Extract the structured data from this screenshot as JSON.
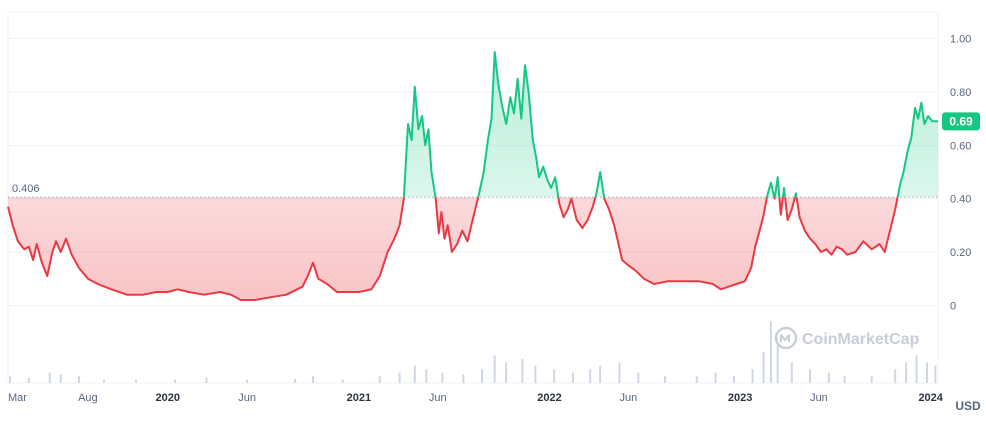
{
  "chart_data": {
    "type": "area",
    "currency_label": "USD",
    "baseline": {
      "value": 0.406,
      "label": "0.406"
    },
    "current": {
      "value": 0.69,
      "label": "0.69"
    },
    "ylim": [
      -0.22,
      1.1
    ],
    "y_ticks": [
      {
        "value": 1.0,
        "label": "1.00"
      },
      {
        "value": 0.8,
        "label": "0.80"
      },
      {
        "value": 0.6,
        "label": "0.60"
      },
      {
        "value": 0.4,
        "label": "0.40"
      },
      {
        "value": 0.2,
        "label": "0.20"
      },
      {
        "value": 0.0,
        "label": "0"
      }
    ],
    "x_ticks": [
      {
        "date": "2019-03-01",
        "label": "Mar",
        "bold": false
      },
      {
        "date": "2019-08-01",
        "label": "Aug",
        "bold": false
      },
      {
        "date": "2020-01-01",
        "label": "2020",
        "bold": true
      },
      {
        "date": "2020-06-01",
        "label": "Jun",
        "bold": false
      },
      {
        "date": "2021-01-01",
        "label": "2021",
        "bold": true
      },
      {
        "date": "2021-06-01",
        "label": "Jun",
        "bold": false
      },
      {
        "date": "2022-01-01",
        "label": "2022",
        "bold": true
      },
      {
        "date": "2022-06-01",
        "label": "Jun",
        "bold": false
      },
      {
        "date": "2023-01-01",
        "label": "2023",
        "bold": true
      },
      {
        "date": "2023-06-01",
        "label": "Jun",
        "bold": false
      },
      {
        "date": "2024-01-01",
        "label": "2024",
        "bold": true
      }
    ],
    "xlim": [
      "2019-03-01",
      "2024-01-15"
    ],
    "series": [
      {
        "points": [
          [
            "2019-03-01",
            0.37
          ],
          [
            "2019-03-10",
            0.3
          ],
          [
            "2019-03-20",
            0.24
          ],
          [
            "2019-04-01",
            0.21
          ],
          [
            "2019-04-10",
            0.22
          ],
          [
            "2019-04-18",
            0.17
          ],
          [
            "2019-04-25",
            0.23
          ],
          [
            "2019-05-05",
            0.16
          ],
          [
            "2019-05-15",
            0.11
          ],
          [
            "2019-05-25",
            0.2
          ],
          [
            "2019-06-01",
            0.24
          ],
          [
            "2019-06-10",
            0.2
          ],
          [
            "2019-06-20",
            0.25
          ],
          [
            "2019-07-01",
            0.19
          ],
          [
            "2019-07-15",
            0.14
          ],
          [
            "2019-08-01",
            0.1
          ],
          [
            "2019-08-20",
            0.08
          ],
          [
            "2019-09-15",
            0.06
          ],
          [
            "2019-10-15",
            0.04
          ],
          [
            "2019-11-15",
            0.04
          ],
          [
            "2019-12-10",
            0.05
          ],
          [
            "2020-01-01",
            0.05
          ],
          [
            "2020-01-20",
            0.06
          ],
          [
            "2020-02-10",
            0.05
          ],
          [
            "2020-03-10",
            0.04
          ],
          [
            "2020-04-10",
            0.05
          ],
          [
            "2020-05-01",
            0.04
          ],
          [
            "2020-05-20",
            0.02
          ],
          [
            "2020-06-15",
            0.02
          ],
          [
            "2020-07-15",
            0.03
          ],
          [
            "2020-08-15",
            0.04
          ],
          [
            "2020-09-15",
            0.07
          ],
          [
            "2020-09-25",
            0.11
          ],
          [
            "2020-10-05",
            0.16
          ],
          [
            "2020-10-15",
            0.1
          ],
          [
            "2020-11-01",
            0.08
          ],
          [
            "2020-11-20",
            0.05
          ],
          [
            "2020-12-10",
            0.05
          ],
          [
            "2021-01-01",
            0.05
          ],
          [
            "2021-01-25",
            0.06
          ],
          [
            "2021-02-10",
            0.11
          ],
          [
            "2021-02-25",
            0.2
          ],
          [
            "2021-03-10",
            0.25
          ],
          [
            "2021-03-20",
            0.3
          ],
          [
            "2021-03-28",
            0.4
          ],
          [
            "2021-04-05",
            0.68
          ],
          [
            "2021-04-12",
            0.62
          ],
          [
            "2021-04-18",
            0.82
          ],
          [
            "2021-04-25",
            0.66
          ],
          [
            "2021-05-02",
            0.71
          ],
          [
            "2021-05-08",
            0.6
          ],
          [
            "2021-05-14",
            0.66
          ],
          [
            "2021-05-20",
            0.5
          ],
          [
            "2021-05-28",
            0.4
          ],
          [
            "2021-06-03",
            0.27
          ],
          [
            "2021-06-08",
            0.35
          ],
          [
            "2021-06-14",
            0.25
          ],
          [
            "2021-06-20",
            0.3
          ],
          [
            "2021-06-28",
            0.2
          ],
          [
            "2021-07-08",
            0.23
          ],
          [
            "2021-07-18",
            0.28
          ],
          [
            "2021-07-28",
            0.24
          ],
          [
            "2021-08-08",
            0.33
          ],
          [
            "2021-08-18",
            0.41
          ],
          [
            "2021-08-28",
            0.5
          ],
          [
            "2021-09-05",
            0.62
          ],
          [
            "2021-09-12",
            0.7
          ],
          [
            "2021-09-18",
            0.95
          ],
          [
            "2021-09-25",
            0.83
          ],
          [
            "2021-10-02",
            0.75
          ],
          [
            "2021-10-10",
            0.68
          ],
          [
            "2021-10-18",
            0.78
          ],
          [
            "2021-10-25",
            0.72
          ],
          [
            "2021-11-01",
            0.85
          ],
          [
            "2021-11-08",
            0.7
          ],
          [
            "2021-11-15",
            0.9
          ],
          [
            "2021-11-22",
            0.8
          ],
          [
            "2021-11-30",
            0.62
          ],
          [
            "2021-12-06",
            0.56
          ],
          [
            "2021-12-12",
            0.48
          ],
          [
            "2021-12-20",
            0.52
          ],
          [
            "2021-12-28",
            0.47
          ],
          [
            "2022-01-04",
            0.44
          ],
          [
            "2022-01-12",
            0.48
          ],
          [
            "2022-01-20",
            0.38
          ],
          [
            "2022-01-28",
            0.33
          ],
          [
            "2022-02-05",
            0.36
          ],
          [
            "2022-02-12",
            0.4
          ],
          [
            "2022-02-22",
            0.32
          ],
          [
            "2022-03-05",
            0.29
          ],
          [
            "2022-03-15",
            0.32
          ],
          [
            "2022-03-25",
            0.37
          ],
          [
            "2022-04-01",
            0.42
          ],
          [
            "2022-04-08",
            0.5
          ],
          [
            "2022-04-16",
            0.4
          ],
          [
            "2022-04-25",
            0.36
          ],
          [
            "2022-05-05",
            0.3
          ],
          [
            "2022-05-12",
            0.24
          ],
          [
            "2022-05-20",
            0.17
          ],
          [
            "2022-06-01",
            0.15
          ],
          [
            "2022-06-15",
            0.13
          ],
          [
            "2022-07-01",
            0.1
          ],
          [
            "2022-07-20",
            0.08
          ],
          [
            "2022-08-15",
            0.09
          ],
          [
            "2022-09-15",
            0.09
          ],
          [
            "2022-10-15",
            0.09
          ],
          [
            "2022-11-10",
            0.08
          ],
          [
            "2022-11-25",
            0.06
          ],
          [
            "2022-12-10",
            0.07
          ],
          [
            "2022-12-25",
            0.08
          ],
          [
            "2023-01-10",
            0.09
          ],
          [
            "2023-01-22",
            0.14
          ],
          [
            "2023-01-30",
            0.22
          ],
          [
            "2023-02-06",
            0.27
          ],
          [
            "2023-02-14",
            0.33
          ],
          [
            "2023-02-22",
            0.41
          ],
          [
            "2023-03-01",
            0.46
          ],
          [
            "2023-03-08",
            0.4
          ],
          [
            "2023-03-14",
            0.48
          ],
          [
            "2023-03-20",
            0.34
          ],
          [
            "2023-03-26",
            0.44
          ],
          [
            "2023-04-02",
            0.32
          ],
          [
            "2023-04-10",
            0.36
          ],
          [
            "2023-04-18",
            0.42
          ],
          [
            "2023-04-25",
            0.33
          ],
          [
            "2023-05-05",
            0.28
          ],
          [
            "2023-05-15",
            0.25
          ],
          [
            "2023-05-25",
            0.23
          ],
          [
            "2023-06-05",
            0.2
          ],
          [
            "2023-06-15",
            0.21
          ],
          [
            "2023-06-25",
            0.19
          ],
          [
            "2023-07-05",
            0.22
          ],
          [
            "2023-07-15",
            0.21
          ],
          [
            "2023-07-25",
            0.19
          ],
          [
            "2023-08-10",
            0.2
          ],
          [
            "2023-08-25",
            0.24
          ],
          [
            "2023-09-10",
            0.21
          ],
          [
            "2023-09-25",
            0.23
          ],
          [
            "2023-10-05",
            0.2
          ],
          [
            "2023-10-15",
            0.28
          ],
          [
            "2023-10-25",
            0.36
          ],
          [
            "2023-11-03",
            0.45
          ],
          [
            "2023-11-10",
            0.5
          ],
          [
            "2023-11-18",
            0.58
          ],
          [
            "2023-11-25",
            0.63
          ],
          [
            "2023-12-02",
            0.74
          ],
          [
            "2023-12-08",
            0.7
          ],
          [
            "2023-12-14",
            0.76
          ],
          [
            "2023-12-20",
            0.68
          ],
          [
            "2023-12-27",
            0.71
          ],
          [
            "2024-01-04",
            0.69
          ],
          [
            "2024-01-15",
            0.69
          ]
        ]
      }
    ],
    "volume": [
      [
        "2019-03-05",
        0.02
      ],
      [
        "2019-04-10",
        0.015
      ],
      [
        "2019-05-20",
        0.03
      ],
      [
        "2019-06-10",
        0.025
      ],
      [
        "2019-07-15",
        0.02
      ],
      [
        "2019-09-01",
        0.01
      ],
      [
        "2019-11-01",
        0.01
      ],
      [
        "2020-01-15",
        0.01
      ],
      [
        "2020-03-15",
        0.015
      ],
      [
        "2020-06-01",
        0.01
      ],
      [
        "2020-09-01",
        0.012
      ],
      [
        "2020-10-05",
        0.02
      ],
      [
        "2020-12-01",
        0.01
      ],
      [
        "2021-02-10",
        0.02
      ],
      [
        "2021-03-20",
        0.03
      ],
      [
        "2021-04-18",
        0.05
      ],
      [
        "2021-05-10",
        0.04
      ],
      [
        "2021-06-10",
        0.03
      ],
      [
        "2021-07-20",
        0.025
      ],
      [
        "2021-08-25",
        0.04
      ],
      [
        "2021-09-18",
        0.08
      ],
      [
        "2021-10-10",
        0.06
      ],
      [
        "2021-11-10",
        0.07
      ],
      [
        "2021-12-05",
        0.05
      ],
      [
        "2022-01-10",
        0.04
      ],
      [
        "2022-02-15",
        0.03
      ],
      [
        "2022-03-20",
        0.04
      ],
      [
        "2022-04-08",
        0.05
      ],
      [
        "2022-05-15",
        0.06
      ],
      [
        "2022-06-20",
        0.03
      ],
      [
        "2022-08-10",
        0.02
      ],
      [
        "2022-10-10",
        0.02
      ],
      [
        "2022-11-15",
        0.03
      ],
      [
        "2022-12-20",
        0.02
      ],
      [
        "2023-01-25",
        0.04
      ],
      [
        "2023-02-15",
        0.09
      ],
      [
        "2023-03-01",
        0.18
      ],
      [
        "2023-03-14",
        0.11
      ],
      [
        "2023-04-10",
        0.06
      ],
      [
        "2023-05-15",
        0.04
      ],
      [
        "2023-06-20",
        0.03
      ],
      [
        "2023-07-20",
        0.02
      ],
      [
        "2023-09-10",
        0.02
      ],
      [
        "2023-10-25",
        0.04
      ],
      [
        "2023-11-15",
        0.06
      ],
      [
        "2023-12-05",
        0.08
      ],
      [
        "2023-12-25",
        0.06
      ],
      [
        "2024-01-10",
        0.05
      ]
    ],
    "colors": {
      "up": "#16c784",
      "down": "#ea3943",
      "grid": "#eff2f5",
      "axis_text": "#58667e",
      "dotted_line": "#a6b0c3",
      "volume": "#cfd6e4",
      "watermark": "#c8cdd6"
    },
    "grid": true,
    "watermark_text": "CoinMarketCap"
  }
}
